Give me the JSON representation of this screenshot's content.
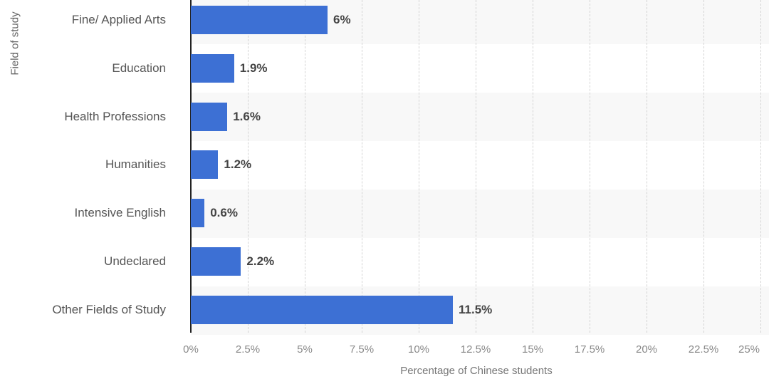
{
  "chart_data": {
    "type": "bar",
    "orientation": "horizontal",
    "title": "",
    "xlabel": "Percentage of Chinese students",
    "ylabel": "Field of study",
    "categories": [
      "Fine/ Applied Arts",
      "Education",
      "Health Professions",
      "Humanities",
      "Intensive English",
      "Undeclared",
      "Other Fields of Study"
    ],
    "values": [
      6,
      1.9,
      1.6,
      1.2,
      0.6,
      2.2,
      11.5
    ],
    "value_labels": [
      "6%",
      "1.9%",
      "1.6%",
      "1.2%",
      "0.6%",
      "2.2%",
      "11.5%"
    ],
    "xlim": [
      0,
      25
    ],
    "x_ticks": [
      0,
      2.5,
      5,
      7.5,
      10,
      12.5,
      15,
      17.5,
      20,
      22.5,
      25
    ],
    "x_tick_labels": [
      "0%",
      "2.5%",
      "5%",
      "7.5%",
      "10%",
      "12.5%",
      "15%",
      "17.5%",
      "20%",
      "22.5%",
      "25%"
    ],
    "grid": true,
    "legend": null,
    "bar_color": "#3d70d4"
  }
}
